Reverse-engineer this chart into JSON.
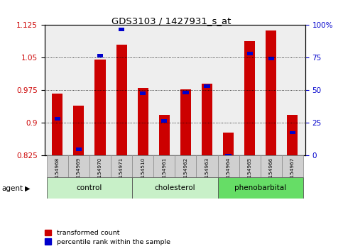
{
  "title": "GDS3103 / 1427931_s_at",
  "samples": [
    "GSM154968",
    "GSM154969",
    "GSM154970",
    "GSM154971",
    "GSM154510",
    "GSM154961",
    "GSM154962",
    "GSM154963",
    "GSM154964",
    "GSM154965",
    "GSM154966",
    "GSM154967"
  ],
  "red_values": [
    0.968,
    0.94,
    1.046,
    1.08,
    0.98,
    0.918,
    0.978,
    0.99,
    0.878,
    1.088,
    1.112,
    0.918
  ],
  "blue_values": [
    0.91,
    0.84,
    1.055,
    1.115,
    0.968,
    0.905,
    0.97,
    0.985,
    0.825,
    1.06,
    1.048,
    0.878
  ],
  "groups": [
    {
      "label": "control",
      "start": 0,
      "end": 3,
      "color": "#c8f0c8"
    },
    {
      "label": "cholesterol",
      "start": 4,
      "end": 7,
      "color": "#c8f0c8"
    },
    {
      "label": "phenobarbital",
      "start": 8,
      "end": 11,
      "color": "#66dd66"
    }
  ],
  "ylim_left": [
    0.825,
    1.125
  ],
  "ylim_right": [
    0,
    100
  ],
  "yticks_left": [
    0.825,
    0.9,
    0.975,
    1.05,
    1.125
  ],
  "yticks_left_labels": [
    "0.825",
    "0.9",
    "0.975",
    "1.05",
    "1.125"
  ],
  "yticks_right": [
    0,
    25,
    50,
    75,
    100
  ],
  "yticks_right_labels": [
    "0",
    "25",
    "50",
    "75",
    "100%"
  ],
  "bar_width": 0.5,
  "red_color": "#cc0000",
  "blue_color": "#0000cc",
  "plot_bg": "#eeeeee",
  "tick_label_bg": "#d0d0d0",
  "group_bg_light": "#c8f0c8",
  "group_bg_dark": "#66dd66",
  "agent_label": "agent",
  "legend_red": "transformed count",
  "legend_blue": "percentile rank within the sample"
}
